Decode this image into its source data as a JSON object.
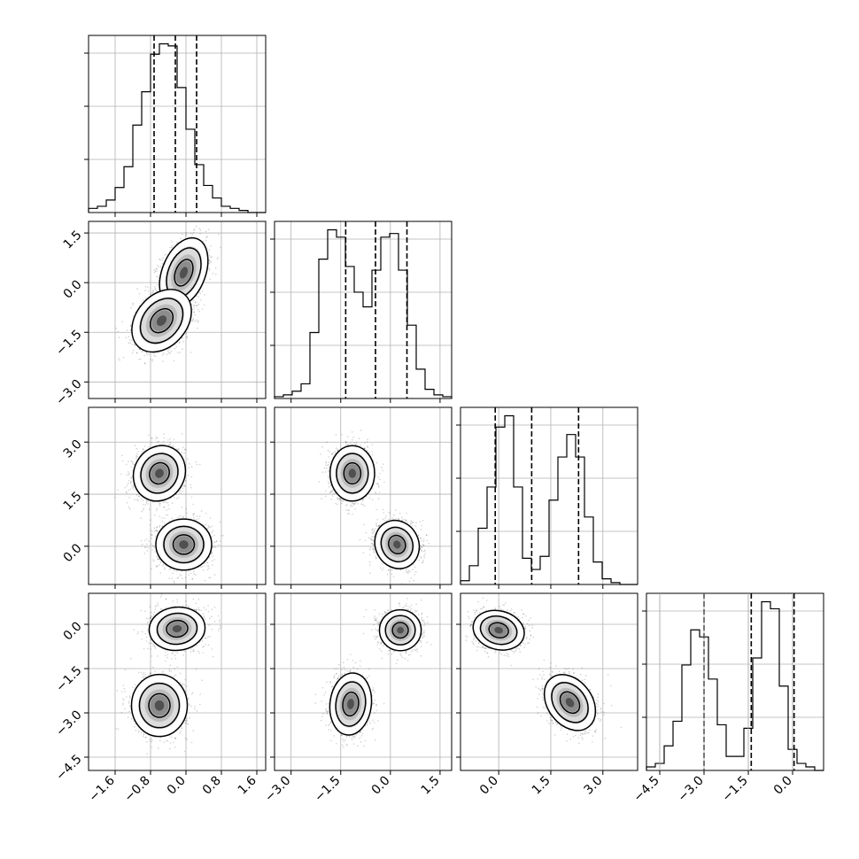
{
  "chart_data": {
    "type": "corner",
    "title": "",
    "params": [
      {
        "range": [
          -2.2,
          1.8
        ],
        "ticks": [
          -1.6,
          -0.8,
          0.0,
          0.8,
          1.6
        ],
        "tick_labels": [
          "−1.6",
          "−0.8",
          "0.0",
          "0.8",
          "1.6"
        ]
      },
      {
        "range": [
          -3.5,
          1.85
        ],
        "ticks": [
          -3.0,
          -1.5,
          0.0,
          1.5
        ],
        "tick_labels": [
          "−3.0",
          "−1.5",
          "0.0",
          "1.5"
        ]
      },
      {
        "range": [
          -1.1,
          4.0
        ],
        "ticks": [
          0.0,
          1.5,
          3.0
        ],
        "tick_labels": [
          "0.0",
          "1.5",
          "3.0"
        ],
        "y_tick_labels": [
          "0.0",
          "1.5",
          "3.0"
        ]
      },
      {
        "range": [
          -4.95,
          1.05
        ],
        "ticks": [
          -4.5,
          -3.0,
          -1.5,
          0.0
        ],
        "tick_labels": [
          "−4.5",
          "−3.0",
          "−1.5",
          "0.0"
        ]
      }
    ],
    "histograms": [
      {
        "param": 0,
        "bins": 20,
        "counts": [
          2,
          3,
          6,
          12,
          22,
          42,
          58,
          76,
          81,
          80,
          60,
          40,
          23,
          13,
          7,
          3,
          2,
          1,
          0,
          0
        ],
        "quantiles": [
          -0.72,
          -0.24,
          0.24
        ]
      },
      {
        "param": 1,
        "bins": 20,
        "counts": [
          1,
          2,
          4,
          8,
          36,
          76,
          92,
          88,
          72,
          58,
          50,
          70,
          88,
          90,
          70,
          40,
          16,
          5,
          2,
          1
        ],
        "quantiles": [
          -1.35,
          -0.45,
          0.5
        ]
      },
      {
        "param": 2,
        "bins": 20,
        "counts": [
          2,
          10,
          30,
          52,
          84,
          90,
          52,
          14,
          8,
          15,
          45,
          68,
          80,
          68,
          36,
          12,
          3,
          1,
          0,
          0
        ],
        "quantiles": [
          -0.1,
          0.95,
          2.3
        ]
      },
      {
        "param": 3,
        "bins": 20,
        "counts": [
          1,
          2,
          7,
          14,
          30,
          40,
          38,
          26,
          13,
          4,
          4,
          12,
          32,
          48,
          46,
          24,
          6,
          2,
          1,
          0
        ],
        "quantiles": [
          -3.0,
          -1.4,
          0.05
        ]
      }
    ],
    "scatter_panels": [
      {
        "x": 0,
        "y": 1,
        "clusters": [
          {
            "center": [
              -0.05,
              0.3
            ],
            "sigma": [
              0.26,
              0.5
            ],
            "rho": 0.35,
            "weight": 0.5
          },
          {
            "center": [
              -0.55,
              -1.15
            ],
            "sigma": [
              0.32,
              0.45
            ],
            "rho": 0.3,
            "weight": 0.5
          }
        ]
      },
      {
        "x": 0,
        "y": 2,
        "clusters": [
          {
            "center": [
              -0.6,
              2.1
            ],
            "sigma": [
              0.28,
              0.38
            ],
            "rho": 0.1,
            "weight": 0.5
          },
          {
            "center": [
              -0.05,
              0.05
            ],
            "sigma": [
              0.3,
              0.35
            ],
            "rho": 0.0,
            "weight": 0.5
          }
        ]
      },
      {
        "x": 0,
        "y": 3,
        "clusters": [
          {
            "center": [
              -0.2,
              -0.15
            ],
            "sigma": [
              0.3,
              0.35
            ],
            "rho": 0.05,
            "weight": 0.5
          },
          {
            "center": [
              -0.6,
              -2.75
            ],
            "sigma": [
              0.3,
              0.5
            ],
            "rho": 0.0,
            "weight": 0.5
          }
        ]
      },
      {
        "x": 1,
        "y": 2,
        "clusters": [
          {
            "center": [
              -1.15,
              2.1
            ],
            "sigma": [
              0.32,
              0.38
            ],
            "rho": 0.0,
            "weight": 0.5
          },
          {
            "center": [
              0.2,
              0.05
            ],
            "sigma": [
              0.32,
              0.33
            ],
            "rho": -0.1,
            "weight": 0.5
          }
        ]
      },
      {
        "x": 1,
        "y": 3,
        "clusters": [
          {
            "center": [
              0.3,
              -0.2
            ],
            "sigma": [
              0.3,
              0.33
            ],
            "rho": 0.0,
            "weight": 0.5
          },
          {
            "center": [
              -1.2,
              -2.7
            ],
            "sigma": [
              0.3,
              0.5
            ],
            "rho": 0.1,
            "weight": 0.5
          }
        ]
      },
      {
        "x": 2,
        "y": 3,
        "clusters": [
          {
            "center": [
              0.0,
              -0.2
            ],
            "sigma": [
              0.35,
              0.32
            ],
            "rho": -0.15,
            "weight": 0.5
          },
          {
            "center": [
              2.05,
              -2.65
            ],
            "sigma": [
              0.35,
              0.45
            ],
            "rho": -0.3,
            "weight": 0.5
          }
        ]
      }
    ],
    "contour_levels_sigma": [
      0.8,
      1.5,
      2.1
    ],
    "grid": true,
    "colors": {
      "points": "#000000",
      "grid": "#b0b0b0",
      "lines": "#000000"
    }
  }
}
